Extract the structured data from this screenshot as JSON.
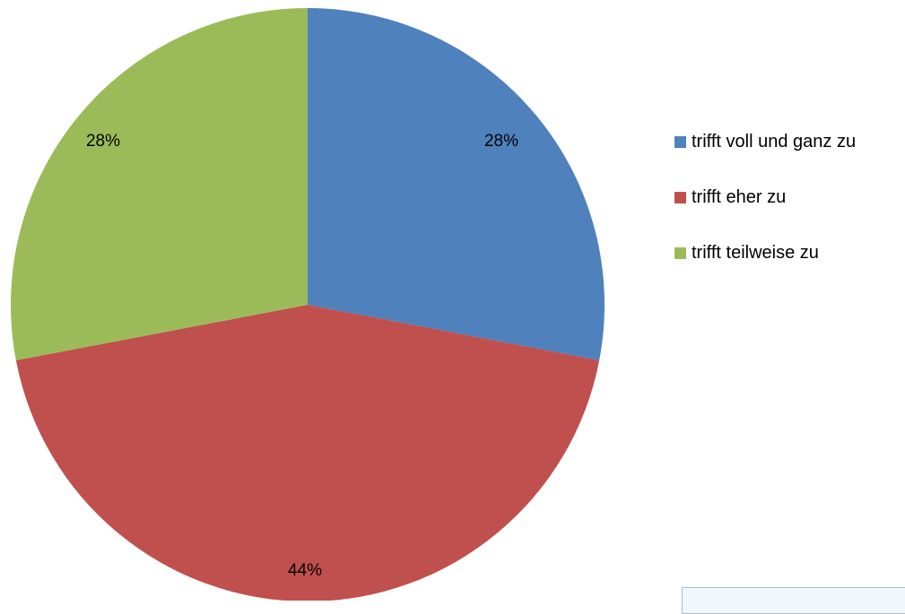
{
  "chart_data": {
    "type": "pie",
    "title": "",
    "slices": [
      {
        "name": "trifft voll und ganz zu",
        "value": 28,
        "label": "28%",
        "color": "#4f81bd"
      },
      {
        "name": "trifft eher zu",
        "value": 44,
        "label": "44%",
        "color": "#c0504d"
      },
      {
        "name": "trifft teilweise zu",
        "value": 28,
        "label": "28%",
        "color": "#9bbb59"
      }
    ],
    "start": "12 o'clock",
    "direction": "clockwise",
    "legend": "right"
  }
}
